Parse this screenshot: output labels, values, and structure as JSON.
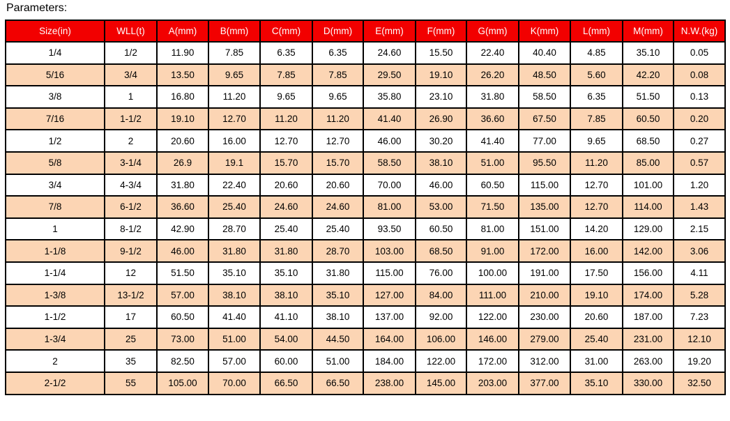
{
  "title": "Parameters:",
  "colors": {
    "header_bg": "#f20000",
    "header_text": "#ffffff",
    "alt_row_bg": "#fcd5b4"
  },
  "table": {
    "headers": [
      "Size(in)",
      "WLL(t)",
      "A(mm)",
      "B(mm)",
      "C(mm)",
      "D(mm)",
      "E(mm)",
      "F(mm)",
      "G(mm)",
      "K(mm)",
      "L(mm)",
      "M(mm)",
      "N.W.(kg)"
    ],
    "rows": [
      [
        "1/4",
        "1/2",
        "11.90",
        "7.85",
        "6.35",
        "6.35",
        "24.60",
        "15.50",
        "22.40",
        "40.40",
        "4.85",
        "35.10",
        "0.05"
      ],
      [
        "5/16",
        "3/4",
        "13.50",
        "9.65",
        "7.85",
        "7.85",
        "29.50",
        "19.10",
        "26.20",
        "48.50",
        "5.60",
        "42.20",
        "0.08"
      ],
      [
        "3/8",
        "1",
        "16.80",
        "11.20",
        "9.65",
        "9.65",
        "35.80",
        "23.10",
        "31.80",
        "58.50",
        "6.35",
        "51.50",
        "0.13"
      ],
      [
        "7/16",
        "1-1/2",
        "19.10",
        "12.70",
        "11.20",
        "11.20",
        "41.40",
        "26.90",
        "36.60",
        "67.50",
        "7.85",
        "60.50",
        "0.20"
      ],
      [
        "1/2",
        "2",
        "20.60",
        "16.00",
        "12.70",
        "12.70",
        "46.00",
        "30.20",
        "41.40",
        "77.00",
        "9.65",
        "68.50",
        "0.27"
      ],
      [
        "5/8",
        "3-1/4",
        "26.9",
        "19.1",
        "15.70",
        "15.70",
        "58.50",
        "38.10",
        "51.00",
        "95.50",
        "11.20",
        "85.00",
        "0.57"
      ],
      [
        "3/4",
        "4-3/4",
        "31.80",
        "22.40",
        "20.60",
        "20.60",
        "70.00",
        "46.00",
        "60.50",
        "115.00",
        "12.70",
        "101.00",
        "1.20"
      ],
      [
        "7/8",
        "6-1/2",
        "36.60",
        "25.40",
        "24.60",
        "24.60",
        "81.00",
        "53.00",
        "71.50",
        "135.00",
        "12.70",
        "114.00",
        "1.43"
      ],
      [
        "1",
        "8-1/2",
        "42.90",
        "28.70",
        "25.40",
        "25.40",
        "93.50",
        "60.50",
        "81.00",
        "151.00",
        "14.20",
        "129.00",
        "2.15"
      ],
      [
        "1-1/8",
        "9-1/2",
        "46.00",
        "31.80",
        "31.80",
        "28.70",
        "103.00",
        "68.50",
        "91.00",
        "172.00",
        "16.00",
        "142.00",
        "3.06"
      ],
      [
        "1-1/4",
        "12",
        "51.50",
        "35.10",
        "35.10",
        "31.80",
        "115.00",
        "76.00",
        "100.00",
        "191.00",
        "17.50",
        "156.00",
        "4.11"
      ],
      [
        "1-3/8",
        "13-1/2",
        "57.00",
        "38.10",
        "38.10",
        "35.10",
        "127.00",
        "84.00",
        "111.00",
        "210.00",
        "19.10",
        "174.00",
        "5.28"
      ],
      [
        "1-1/2",
        "17",
        "60.50",
        "41.40",
        "41.10",
        "38.10",
        "137.00",
        "92.00",
        "122.00",
        "230.00",
        "20.60",
        "187.00",
        "7.23"
      ],
      [
        "1-3/4",
        "25",
        "73.00",
        "51.00",
        "54.00",
        "44.50",
        "164.00",
        "106.00",
        "146.00",
        "279.00",
        "25.40",
        "231.00",
        "12.10"
      ],
      [
        "2",
        "35",
        "82.50",
        "57.00",
        "60.00",
        "51.00",
        "184.00",
        "122.00",
        "172.00",
        "312.00",
        "31.00",
        "263.00",
        "19.20"
      ],
      [
        "2-1/2",
        "55",
        "105.00",
        "70.00",
        "66.50",
        "66.50",
        "238.00",
        "145.00",
        "203.00",
        "377.00",
        "35.10",
        "330.00",
        "32.50"
      ]
    ]
  }
}
